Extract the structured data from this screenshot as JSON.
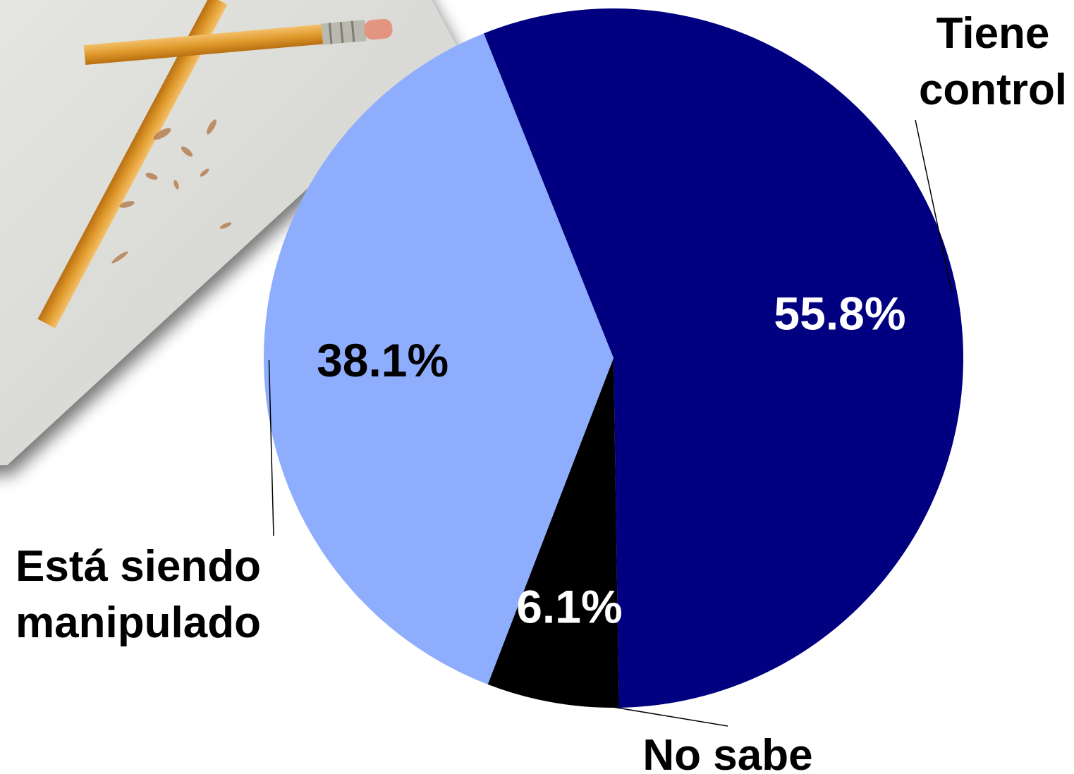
{
  "chart_data": {
    "type": "pie",
    "title": "",
    "slices": [
      {
        "label_lines": [
          "Tiene",
          "control"
        ],
        "value": 55.8,
        "value_label": "55.8%",
        "color": "#000080",
        "value_label_color": "#ffffff"
      },
      {
        "label_lines": [
          "No sabe"
        ],
        "value": 6.1,
        "value_label": "6.1%",
        "color": "#000000",
        "value_label_color": "#ffffff"
      },
      {
        "label_lines": [
          "Está siendo",
          "manipulado"
        ],
        "value": 38.1,
        "value_label": "38.1%",
        "color": "#8eaefd",
        "value_label_color": "#000000"
      }
    ]
  },
  "decoration": {
    "icon": "pencil-and-paper-icon"
  }
}
